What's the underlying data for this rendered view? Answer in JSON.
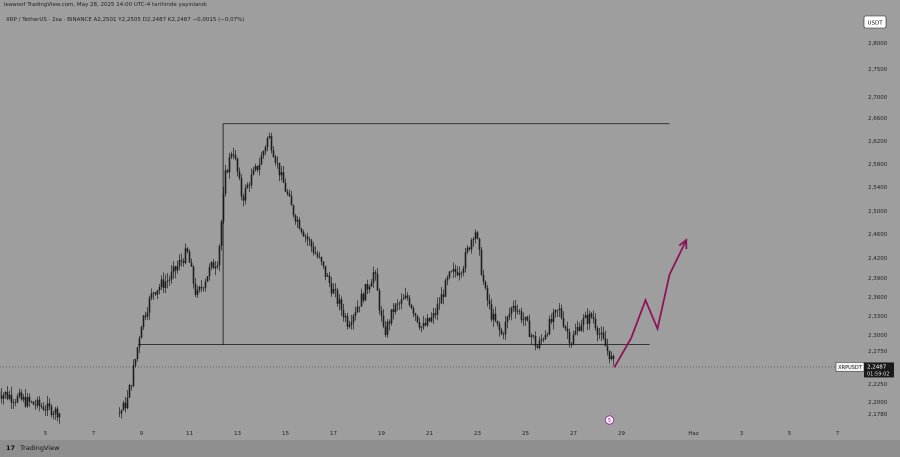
{
  "header": {
    "publisher": "leawoof TradingView.com, May 28, 2025 14:00 UTC-4 tarihinde yayınlandı",
    "symbol_line": "XRP / TetherUS · 2sa · BINANCE  A2,2501  Y2,2505  D2,2487  K2,2487  −0,0015 (−0,07%)"
  },
  "currency_badge": "USDT",
  "price_tag": {
    "symbol": "XRPUSDT",
    "price": "2,2487",
    "countdown": "01:59:02"
  },
  "event_marker": "5",
  "footer": {
    "logo_text": "TradingView",
    "logo_mark": "17"
  },
  "colors": {
    "background": "#9e9e9e",
    "candle": "#1e1e1e",
    "projection": "#8c1459",
    "level": "#111111"
  },
  "chart_data": {
    "type": "candlestick",
    "symbol": "XRP / TetherUS",
    "interval": "2sa",
    "exchange": "BINANCE",
    "y_ticks": [
      "2,8000",
      "2,7500",
      "2,7000",
      "2,6600",
      "2,6200",
      "2,5800",
      "2,5400",
      "2,5000",
      "2,4600",
      "2,4200",
      "2,3900",
      "2,3600",
      "2,3300",
      "2,3000",
      "2,2750",
      "2,2500",
      "2,2250",
      "2,2000",
      "2,1780"
    ],
    "y_tick_values": [
      2.8,
      2.75,
      2.7,
      2.66,
      2.62,
      2.58,
      2.54,
      2.5,
      2.46,
      2.42,
      2.39,
      2.36,
      2.33,
      2.3,
      2.275,
      2.25,
      2.225,
      2.2,
      2.178
    ],
    "x_ticks": [
      "5",
      "7",
      "9",
      "11",
      "13",
      "15",
      "17",
      "19",
      "21",
      "23",
      "25",
      "27",
      "29",
      "Haz",
      "3",
      "5",
      "7"
    ],
    "x_tick_day_index": [
      5,
      7,
      9,
      11,
      13,
      15,
      17,
      19,
      21,
      23,
      25,
      27,
      29,
      32,
      34,
      36,
      38
    ],
    "current_price": 2.2487,
    "path_anchors_day_price": [
      [
        3.0,
        2.215
      ],
      [
        3.8,
        2.205
      ],
      [
        4.6,
        2.195
      ],
      [
        5.3,
        2.185
      ],
      [
        5.6,
        2.18
      ],
      [
        6.8,
        2.17
      ],
      [
        8.0,
        2.175
      ],
      [
        8.4,
        2.2
      ],
      [
        8.7,
        2.25
      ],
      [
        9.0,
        2.32
      ],
      [
        9.5,
        2.37
      ],
      [
        10.2,
        2.39
      ],
      [
        10.9,
        2.43
      ],
      [
        11.3,
        2.36
      ],
      [
        11.8,
        2.4
      ],
      [
        12.2,
        2.42
      ],
      [
        12.5,
        2.56
      ],
      [
        12.8,
        2.61
      ],
      [
        13.2,
        2.52
      ],
      [
        13.5,
        2.55
      ],
      [
        13.9,
        2.58
      ],
      [
        14.3,
        2.63
      ],
      [
        14.8,
        2.56
      ],
      [
        15.3,
        2.5
      ],
      [
        15.8,
        2.46
      ],
      [
        16.5,
        2.41
      ],
      [
        17.1,
        2.36
      ],
      [
        17.6,
        2.32
      ],
      [
        18.2,
        2.36
      ],
      [
        18.7,
        2.4
      ],
      [
        19.1,
        2.3
      ],
      [
        19.5,
        2.34
      ],
      [
        20.1,
        2.36
      ],
      [
        20.7,
        2.31
      ],
      [
        21.2,
        2.33
      ],
      [
        21.8,
        2.39
      ],
      [
        22.4,
        2.41
      ],
      [
        22.9,
        2.47
      ],
      [
        23.3,
        2.37
      ],
      [
        23.6,
        2.33
      ],
      [
        24.0,
        2.3
      ],
      [
        24.5,
        2.35
      ],
      [
        25.0,
        2.32
      ],
      [
        25.5,
        2.28
      ],
      [
        25.9,
        2.31
      ],
      [
        26.4,
        2.34
      ],
      [
        26.9,
        2.29
      ],
      [
        27.3,
        2.32
      ],
      [
        27.8,
        2.33
      ],
      [
        28.1,
        2.3
      ],
      [
        28.5,
        2.27
      ],
      [
        28.7,
        2.2487
      ]
    ],
    "annotations": {
      "range_box": {
        "from_day": 12.4,
        "to_day": 31.0,
        "top_price": 2.65,
        "bottom_price": 2.285
      },
      "projection_path_day_price": [
        [
          28.7,
          2.248
        ],
        [
          29.4,
          2.295
        ],
        [
          30.0,
          2.355
        ],
        [
          30.5,
          2.31
        ],
        [
          31.0,
          2.395
        ],
        [
          31.7,
          2.45
        ]
      ]
    }
  }
}
